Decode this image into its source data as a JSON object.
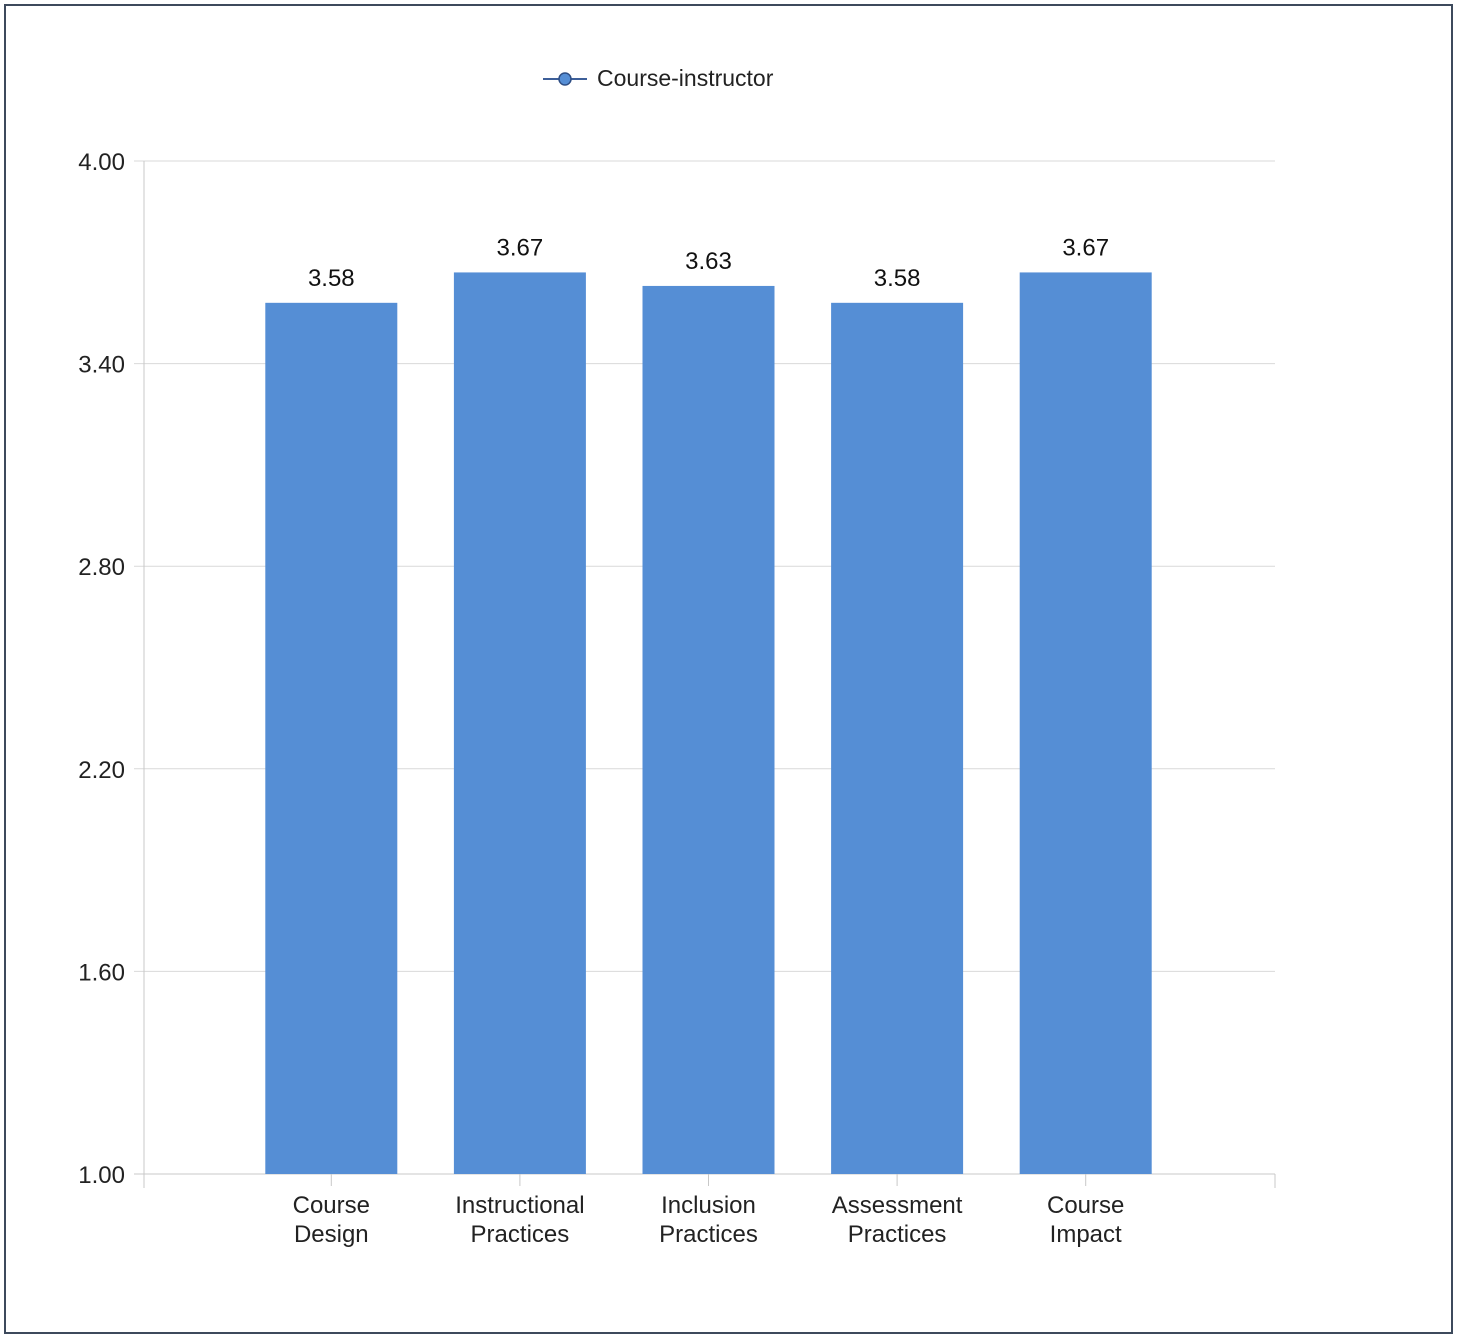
{
  "chart_data": {
    "type": "bar",
    "categories": [
      [
        "Course",
        "Design"
      ],
      [
        "Instructional",
        "Practices"
      ],
      [
        "Inclusion",
        "Practices"
      ],
      [
        "Assessment",
        "Practices"
      ],
      [
        "Course",
        "Impact"
      ]
    ],
    "series": [
      {
        "name": "Course-instructor",
        "values": [
          3.58,
          3.67,
          3.63,
          3.58,
          3.67
        ],
        "value_labels": [
          "3.58",
          "3.67",
          "3.63",
          "3.58",
          "3.67"
        ],
        "color": "#558ed5"
      }
    ],
    "ylim": [
      1.0,
      4.0
    ],
    "yticks": [
      1.0,
      1.6,
      2.2,
      2.8,
      3.4,
      4.0
    ],
    "ytick_labels": [
      "1.00",
      "1.60",
      "2.20",
      "2.80",
      "3.40",
      "4.00"
    ],
    "legend_position": "top-center",
    "grid": true,
    "colors": {
      "grid": "#d9d9d9",
      "axis": "#c8c8c8",
      "frame": "#3d4a5c"
    }
  }
}
